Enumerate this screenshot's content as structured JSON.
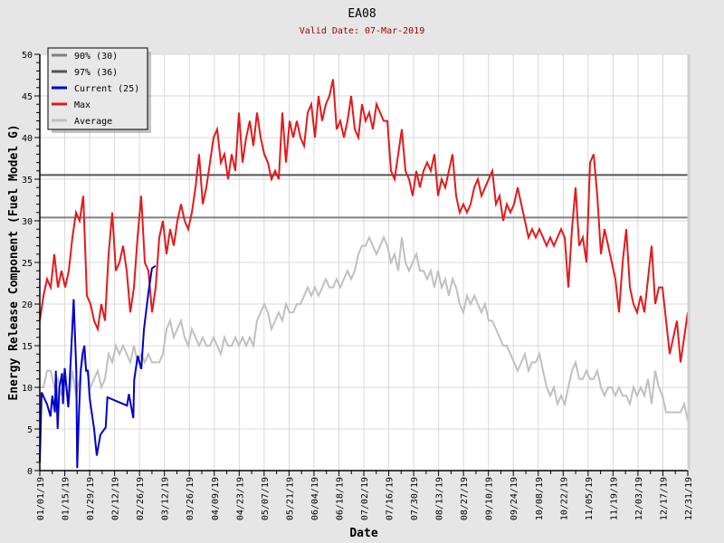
{
  "chart_data": {
    "type": "line",
    "title": "EA08",
    "subtitle": "Valid Date: 07-Mar-2019",
    "xlabel": "Date",
    "ylabel": "Energy Release Component (Fuel Model G)",
    "ylim": [
      0,
      50
    ],
    "yticks": [
      "0",
      "5",
      "10",
      "15",
      "20",
      "25",
      "30",
      "35",
      "40",
      "45",
      "50"
    ],
    "xlim_days": [
      0,
      364
    ],
    "xticks": [
      "01/01/19",
      "01/15/19",
      "01/29/19",
      "02/12/19",
      "02/26/19",
      "03/12/19",
      "03/26/19",
      "04/09/19",
      "04/23/19",
      "05/07/19",
      "05/21/19",
      "06/04/19",
      "06/18/19",
      "07/02/19",
      "07/16/19",
      "07/30/19",
      "08/13/19",
      "08/27/19",
      "09/10/19",
      "09/24/19",
      "10/08/19",
      "10/22/19",
      "11/05/19",
      "11/19/19",
      "12/03/19",
      "12/17/19",
      "12/31/19"
    ],
    "grid": true,
    "legend_position": "top-left",
    "thresholds": [
      {
        "name": "90% (30)",
        "value": 30.4,
        "color": "#808080"
      },
      {
        "name": "97% (36)",
        "value": 35.5,
        "color": "#555555"
      }
    ],
    "series": [
      {
        "name": "Current (25)",
        "color": "#0000cc",
        "points": [
          [
            0,
            1
          ],
          [
            1,
            9.4
          ],
          [
            2.5,
            8.7
          ],
          [
            4,
            8
          ],
          [
            6,
            6.5
          ],
          [
            7,
            9
          ],
          [
            8.5,
            7
          ],
          [
            9,
            12
          ],
          [
            10,
            5
          ],
          [
            11,
            10
          ],
          [
            12.5,
            11.7
          ],
          [
            13,
            8
          ],
          [
            14,
            12.3
          ],
          [
            16,
            7.6
          ],
          [
            18,
            16
          ],
          [
            19,
            20.6
          ],
          [
            20.5,
            12
          ],
          [
            21,
            0.3
          ],
          [
            22,
            7
          ],
          [
            23,
            12
          ],
          [
            24,
            14
          ],
          [
            25,
            15
          ],
          [
            26,
            12
          ],
          [
            27,
            12
          ],
          [
            28,
            8.7
          ],
          [
            30.5,
            5
          ],
          [
            32,
            1.8
          ],
          [
            34,
            4.3
          ],
          [
            37,
            5.2
          ],
          [
            38,
            8.8
          ],
          [
            49,
            7.8
          ],
          [
            50,
            9.2
          ],
          [
            52.5,
            6.3
          ],
          [
            53,
            10.9
          ],
          [
            55,
            13.8
          ],
          [
            57,
            12.2
          ],
          [
            58.5,
            17
          ],
          [
            61,
            21.4
          ],
          [
            63,
            24.3
          ],
          [
            65,
            24.6
          ]
        ]
      },
      {
        "name": "Max",
        "color": "#e31a1c",
        "values": [
          18,
          21,
          23,
          22,
          26,
          22,
          24,
          22,
          24,
          28,
          31,
          30,
          33,
          21,
          20,
          18,
          17,
          20,
          18,
          26,
          31,
          24,
          25,
          27,
          24,
          19,
          22,
          28,
          33,
          25,
          24,
          19,
          22,
          28,
          30,
          26,
          29,
          27,
          30,
          32,
          30,
          29,
          31,
          34,
          38,
          32,
          34,
          37,
          40,
          41,
          37,
          38,
          35,
          38,
          36,
          43,
          37,
          40,
          42,
          39,
          43,
          40,
          38,
          37,
          35,
          36,
          35,
          43,
          37,
          42,
          40,
          42,
          40,
          39,
          43,
          44,
          40,
          45,
          42,
          44,
          45,
          47,
          41,
          42,
          40,
          42,
          45,
          41,
          40,
          44,
          42,
          43,
          41,
          44,
          43,
          42,
          42,
          36,
          35,
          38,
          41,
          36,
          35,
          33,
          36,
          34,
          36,
          37,
          36,
          38,
          33,
          35,
          34,
          36,
          38,
          33,
          31,
          32,
          31,
          32,
          34,
          35,
          33,
          34,
          35,
          36,
          32,
          33,
          30,
          32,
          31,
          32,
          34,
          32,
          30,
          28,
          29,
          28,
          29,
          28,
          27,
          28,
          27,
          28,
          29,
          28,
          22,
          29,
          34,
          27,
          28,
          25,
          37,
          38,
          33,
          26,
          29,
          27,
          25,
          23,
          19,
          25,
          29,
          22,
          20,
          19,
          21,
          19,
          23,
          27,
          20,
          22,
          22,
          18,
          14,
          16,
          18,
          13,
          16,
          19
        ]
      },
      {
        "name": "Average",
        "color": "#c0c0c0",
        "values": [
          10,
          10,
          12,
          12,
          10,
          11,
          9,
          11,
          8,
          12,
          9,
          11,
          14,
          12,
          10,
          11,
          12,
          10,
          11,
          14,
          13,
          15,
          14,
          15,
          14,
          13,
          15,
          13,
          14,
          13,
          14,
          13,
          13,
          13,
          14,
          17,
          18,
          16,
          17,
          18,
          16,
          15,
          17,
          16,
          15,
          16,
          15,
          15,
          16,
          15,
          14,
          16,
          15,
          15,
          16,
          15,
          16,
          15,
          16,
          15,
          18,
          19,
          20,
          19,
          17,
          18,
          19,
          18,
          20,
          19,
          19,
          20,
          20,
          21,
          22,
          21,
          22,
          21,
          22,
          23,
          22,
          22,
          23,
          22,
          23,
          24,
          23,
          24,
          26,
          27,
          27,
          28,
          27,
          26,
          27,
          28,
          27,
          25,
          26,
          24,
          28,
          25,
          24,
          25,
          26,
          24,
          24,
          23,
          24,
          22,
          24,
          22,
          23,
          21,
          23,
          22,
          20,
          19,
          21,
          20,
          21,
          20,
          19,
          20,
          18,
          18,
          17,
          16,
          15,
          15,
          14,
          13,
          12,
          13,
          14,
          12,
          13,
          13,
          14,
          12,
          10,
          9,
          10,
          8,
          9,
          8,
          10,
          12,
          13,
          11,
          11,
          12,
          11,
          11,
          12,
          10,
          9,
          10,
          10,
          9,
          10,
          9,
          9,
          8,
          10,
          9,
          10,
          9,
          11,
          8,
          12,
          10,
          9,
          7,
          7,
          7,
          7,
          7,
          8,
          6
        ]
      }
    ],
    "legend": [
      "90% (30)",
      "97% (36)",
      "Current (25)",
      "Max",
      "Average"
    ]
  }
}
